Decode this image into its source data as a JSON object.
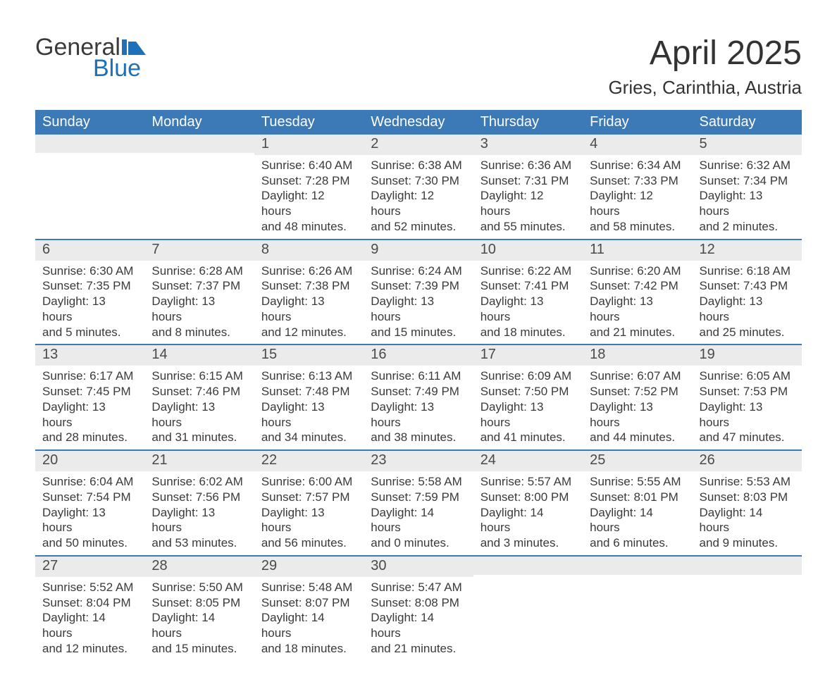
{
  "logo": {
    "word1": "General",
    "word2": "Blue"
  },
  "title": "April 2025",
  "location": "Gries, Carinthia, Austria",
  "colors": {
    "header_bg": "#3b79b7",
    "header_text": "#ffffff",
    "daynum_bg": "#ebebeb",
    "row_divider": "#3b79b7",
    "body_text": "#3a3a3a",
    "logo_blue": "#1e70b8"
  },
  "day_names": [
    "Sunday",
    "Monday",
    "Tuesday",
    "Wednesday",
    "Thursday",
    "Friday",
    "Saturday"
  ],
  "weeks": [
    [
      {
        "blank": true
      },
      {
        "blank": true
      },
      {
        "day": "1",
        "sunrise": "Sunrise: 6:40 AM",
        "sunset": "Sunset: 7:28 PM",
        "daylight1": "Daylight: 12 hours",
        "daylight2": "and 48 minutes."
      },
      {
        "day": "2",
        "sunrise": "Sunrise: 6:38 AM",
        "sunset": "Sunset: 7:30 PM",
        "daylight1": "Daylight: 12 hours",
        "daylight2": "and 52 minutes."
      },
      {
        "day": "3",
        "sunrise": "Sunrise: 6:36 AM",
        "sunset": "Sunset: 7:31 PM",
        "daylight1": "Daylight: 12 hours",
        "daylight2": "and 55 minutes."
      },
      {
        "day": "4",
        "sunrise": "Sunrise: 6:34 AM",
        "sunset": "Sunset: 7:33 PM",
        "daylight1": "Daylight: 12 hours",
        "daylight2": "and 58 minutes."
      },
      {
        "day": "5",
        "sunrise": "Sunrise: 6:32 AM",
        "sunset": "Sunset: 7:34 PM",
        "daylight1": "Daylight: 13 hours",
        "daylight2": "and 2 minutes."
      }
    ],
    [
      {
        "day": "6",
        "sunrise": "Sunrise: 6:30 AM",
        "sunset": "Sunset: 7:35 PM",
        "daylight1": "Daylight: 13 hours",
        "daylight2": "and 5 minutes."
      },
      {
        "day": "7",
        "sunrise": "Sunrise: 6:28 AM",
        "sunset": "Sunset: 7:37 PM",
        "daylight1": "Daylight: 13 hours",
        "daylight2": "and 8 minutes."
      },
      {
        "day": "8",
        "sunrise": "Sunrise: 6:26 AM",
        "sunset": "Sunset: 7:38 PM",
        "daylight1": "Daylight: 13 hours",
        "daylight2": "and 12 minutes."
      },
      {
        "day": "9",
        "sunrise": "Sunrise: 6:24 AM",
        "sunset": "Sunset: 7:39 PM",
        "daylight1": "Daylight: 13 hours",
        "daylight2": "and 15 minutes."
      },
      {
        "day": "10",
        "sunrise": "Sunrise: 6:22 AM",
        "sunset": "Sunset: 7:41 PM",
        "daylight1": "Daylight: 13 hours",
        "daylight2": "and 18 minutes."
      },
      {
        "day": "11",
        "sunrise": "Sunrise: 6:20 AM",
        "sunset": "Sunset: 7:42 PM",
        "daylight1": "Daylight: 13 hours",
        "daylight2": "and 21 minutes."
      },
      {
        "day": "12",
        "sunrise": "Sunrise: 6:18 AM",
        "sunset": "Sunset: 7:43 PM",
        "daylight1": "Daylight: 13 hours",
        "daylight2": "and 25 minutes."
      }
    ],
    [
      {
        "day": "13",
        "sunrise": "Sunrise: 6:17 AM",
        "sunset": "Sunset: 7:45 PM",
        "daylight1": "Daylight: 13 hours",
        "daylight2": "and 28 minutes."
      },
      {
        "day": "14",
        "sunrise": "Sunrise: 6:15 AM",
        "sunset": "Sunset: 7:46 PM",
        "daylight1": "Daylight: 13 hours",
        "daylight2": "and 31 minutes."
      },
      {
        "day": "15",
        "sunrise": "Sunrise: 6:13 AM",
        "sunset": "Sunset: 7:48 PM",
        "daylight1": "Daylight: 13 hours",
        "daylight2": "and 34 minutes."
      },
      {
        "day": "16",
        "sunrise": "Sunrise: 6:11 AM",
        "sunset": "Sunset: 7:49 PM",
        "daylight1": "Daylight: 13 hours",
        "daylight2": "and 38 minutes."
      },
      {
        "day": "17",
        "sunrise": "Sunrise: 6:09 AM",
        "sunset": "Sunset: 7:50 PM",
        "daylight1": "Daylight: 13 hours",
        "daylight2": "and 41 minutes."
      },
      {
        "day": "18",
        "sunrise": "Sunrise: 6:07 AM",
        "sunset": "Sunset: 7:52 PM",
        "daylight1": "Daylight: 13 hours",
        "daylight2": "and 44 minutes."
      },
      {
        "day": "19",
        "sunrise": "Sunrise: 6:05 AM",
        "sunset": "Sunset: 7:53 PM",
        "daylight1": "Daylight: 13 hours",
        "daylight2": "and 47 minutes."
      }
    ],
    [
      {
        "day": "20",
        "sunrise": "Sunrise: 6:04 AM",
        "sunset": "Sunset: 7:54 PM",
        "daylight1": "Daylight: 13 hours",
        "daylight2": "and 50 minutes."
      },
      {
        "day": "21",
        "sunrise": "Sunrise: 6:02 AM",
        "sunset": "Sunset: 7:56 PM",
        "daylight1": "Daylight: 13 hours",
        "daylight2": "and 53 minutes."
      },
      {
        "day": "22",
        "sunrise": "Sunrise: 6:00 AM",
        "sunset": "Sunset: 7:57 PM",
        "daylight1": "Daylight: 13 hours",
        "daylight2": "and 56 minutes."
      },
      {
        "day": "23",
        "sunrise": "Sunrise: 5:58 AM",
        "sunset": "Sunset: 7:59 PM",
        "daylight1": "Daylight: 14 hours",
        "daylight2": "and 0 minutes."
      },
      {
        "day": "24",
        "sunrise": "Sunrise: 5:57 AM",
        "sunset": "Sunset: 8:00 PM",
        "daylight1": "Daylight: 14 hours",
        "daylight2": "and 3 minutes."
      },
      {
        "day": "25",
        "sunrise": "Sunrise: 5:55 AM",
        "sunset": "Sunset: 8:01 PM",
        "daylight1": "Daylight: 14 hours",
        "daylight2": "and 6 minutes."
      },
      {
        "day": "26",
        "sunrise": "Sunrise: 5:53 AM",
        "sunset": "Sunset: 8:03 PM",
        "daylight1": "Daylight: 14 hours",
        "daylight2": "and 9 minutes."
      }
    ],
    [
      {
        "day": "27",
        "sunrise": "Sunrise: 5:52 AM",
        "sunset": "Sunset: 8:04 PM",
        "daylight1": "Daylight: 14 hours",
        "daylight2": "and 12 minutes."
      },
      {
        "day": "28",
        "sunrise": "Sunrise: 5:50 AM",
        "sunset": "Sunset: 8:05 PM",
        "daylight1": "Daylight: 14 hours",
        "daylight2": "and 15 minutes."
      },
      {
        "day": "29",
        "sunrise": "Sunrise: 5:48 AM",
        "sunset": "Sunset: 8:07 PM",
        "daylight1": "Daylight: 14 hours",
        "daylight2": "and 18 minutes."
      },
      {
        "day": "30",
        "sunrise": "Sunrise: 5:47 AM",
        "sunset": "Sunset: 8:08 PM",
        "daylight1": "Daylight: 14 hours",
        "daylight2": "and 21 minutes."
      },
      {
        "blank": true
      },
      {
        "blank": true
      },
      {
        "blank": true
      }
    ]
  ]
}
